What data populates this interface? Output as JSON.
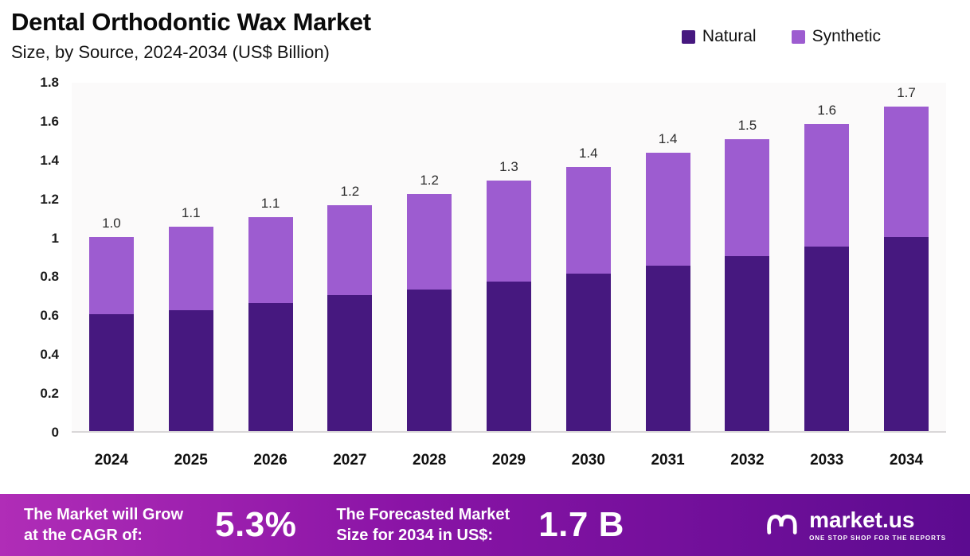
{
  "header": {
    "title": "Dental Orthodontic Wax Market",
    "subtitle": "Size, by Source, 2024-2034 (US$ Billion)"
  },
  "legend": {
    "items": [
      {
        "label": "Natural",
        "color": "#46187F"
      },
      {
        "label": "Synthetic",
        "color": "#9D5CD0"
      }
    ]
  },
  "chart_data": {
    "type": "bar",
    "stacked": true,
    "title": "Dental Orthodontic Wax Market",
    "subtitle": "Size, by Source, 2024-2034 (US$ Billion)",
    "categories": [
      "2024",
      "2025",
      "2026",
      "2027",
      "2028",
      "2029",
      "2030",
      "2031",
      "2032",
      "2033",
      "2034"
    ],
    "series": [
      {
        "name": "Natural",
        "color": "#46187F",
        "values": [
          0.6,
          0.62,
          0.66,
          0.7,
          0.73,
          0.77,
          0.81,
          0.85,
          0.9,
          0.95,
          1.0
        ]
      },
      {
        "name": "Synthetic",
        "color": "#9D5CD0",
        "values": [
          0.4,
          0.43,
          0.44,
          0.46,
          0.49,
          0.52,
          0.55,
          0.58,
          0.6,
          0.63,
          0.67
        ]
      }
    ],
    "totals": [
      1.0,
      1.05,
      1.1,
      1.16,
      1.22,
      1.29,
      1.36,
      1.43,
      1.5,
      1.58,
      1.67
    ],
    "total_labels": [
      "1.0",
      "1.1",
      "1.1",
      "1.2",
      "1.2",
      "1.3",
      "1.4",
      "1.4",
      "1.5",
      "1.6",
      "1.7"
    ],
    "xlabel": "",
    "ylabel": "",
    "ylim": [
      0,
      1.8
    ],
    "yticks": [
      "1.8",
      "1.6",
      "1.4",
      "1.2",
      "1",
      "0.8",
      "0.6",
      "0.4",
      "0.2",
      "0"
    ],
    "grid": false,
    "legend_position": "top-right"
  },
  "banner": {
    "cagr_label_line1": "The Market will Grow",
    "cagr_label_line2": "at the CAGR of:",
    "cagr_value": "5.3%",
    "forecast_label_line1": "The Forecasted Market",
    "forecast_label_line2": "Size for 2034 in US$:",
    "forecast_value": "1.7 B",
    "brand_name": "market.us",
    "brand_tagline": "ONE STOP SHOP FOR THE REPORTS",
    "gradient": [
      "#B02DB7",
      "#5C0B90"
    ]
  }
}
